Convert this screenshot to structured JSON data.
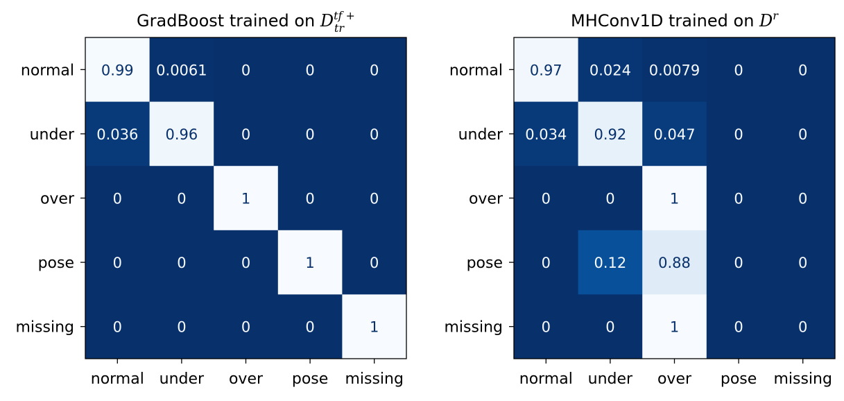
{
  "chart_data": [
    {
      "type": "heatmap",
      "title_main": "GradBoost trained on ",
      "title_math": "D",
      "title_sup": "tf +",
      "title_sub": "tr",
      "row_labels": [
        "normal",
        "under",
        "over",
        "pose",
        "missing"
      ],
      "col_labels": [
        "normal",
        "under",
        "over",
        "pose",
        "missing"
      ],
      "values": [
        [
          0.99,
          0.0061,
          0,
          0,
          0
        ],
        [
          0.036,
          0.96,
          0,
          0,
          0
        ],
        [
          0,
          0,
          1,
          0,
          0
        ],
        [
          0,
          0,
          0,
          1,
          0
        ],
        [
          0,
          0,
          0,
          0,
          1
        ]
      ],
      "cell_labels": [
        [
          "0.99",
          "0.0061",
          "0",
          "0",
          "0"
        ],
        [
          "0.036",
          "0.96",
          "0",
          "0",
          "0"
        ],
        [
          "0",
          "0",
          "1",
          "0",
          "0"
        ],
        [
          "0",
          "0",
          "0",
          "1",
          "0"
        ],
        [
          "0",
          "0",
          "0",
          "0",
          "1"
        ]
      ],
      "colormap": "Blues",
      "value_range": [
        0,
        1
      ]
    },
    {
      "type": "heatmap",
      "title_main": "MHConv1D trained on ",
      "title_math": "D",
      "title_sup": "r",
      "title_sub": "",
      "row_labels": [
        "normal",
        "under",
        "over",
        "pose",
        "missing"
      ],
      "col_labels": [
        "normal",
        "under",
        "over",
        "pose",
        "missing"
      ],
      "values": [
        [
          0.97,
          0.024,
          0.0079,
          0,
          0
        ],
        [
          0.034,
          0.92,
          0.047,
          0,
          0
        ],
        [
          0,
          0,
          1,
          0,
          0
        ],
        [
          0,
          0.12,
          0.88,
          0,
          0
        ],
        [
          0,
          0,
          1,
          0,
          0
        ]
      ],
      "cell_labels": [
        [
          "0.97",
          "0.024",
          "0.0079",
          "0",
          "0"
        ],
        [
          "0.034",
          "0.92",
          "0.047",
          "0",
          "0"
        ],
        [
          "0",
          "0",
          "1",
          "0",
          "0"
        ],
        [
          "0",
          "0.12",
          "0.88",
          "0",
          "0"
        ],
        [
          "0",
          "0",
          "1",
          "0",
          "0"
        ]
      ],
      "colormap": "Blues",
      "value_range": [
        0,
        1
      ]
    }
  ],
  "colors": {
    "low": "#08306b",
    "high": "#f7fbff",
    "text_on_dark": "#f7fbff",
    "text_on_light": "#08306b"
  }
}
